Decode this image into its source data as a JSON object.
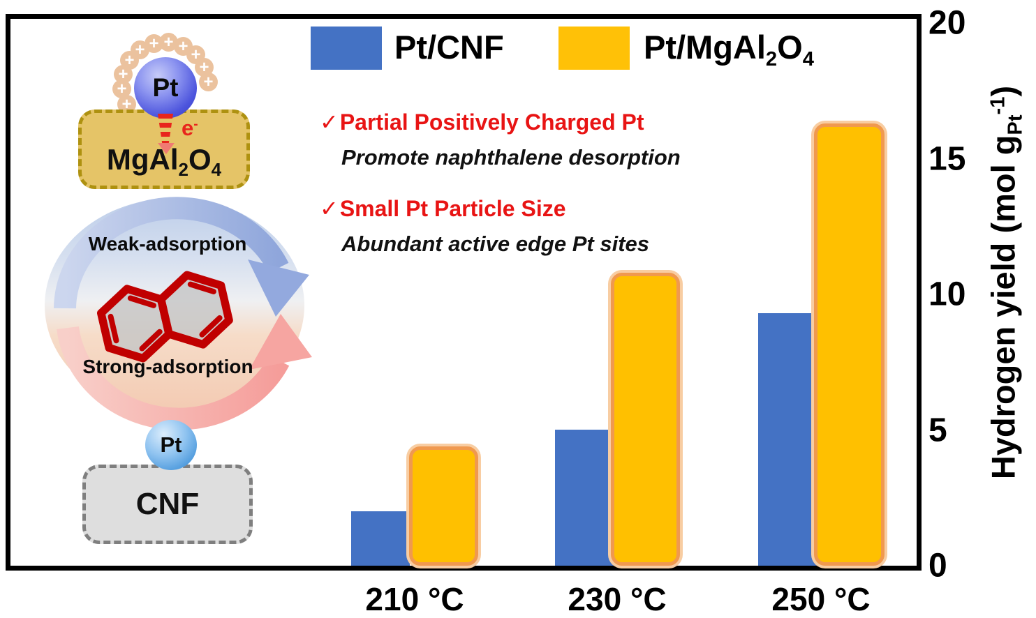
{
  "chart_data": {
    "type": "bar",
    "title": "",
    "categories": [
      "210 °C",
      "230 °C",
      "250 °C"
    ],
    "series": [
      {
        "name": "Pt/CNF",
        "color": "#4472C4",
        "values": [
          2.0,
          5.0,
          9.3
        ]
      },
      {
        "name": "Pt/MgAl2O4",
        "color": "#FFC000",
        "values": [
          4.4,
          10.8,
          16.3
        ]
      }
    ],
    "ylabel": "Hydrogen yield (mol gPt^-1)",
    "ylabel_parts": {
      "pre": "Hydrogen yield (mol g",
      "sub": "Pt",
      "sup": "-1",
      "post": ")"
    },
    "yticks": [
      0,
      5,
      10,
      15,
      20
    ],
    "ylim": [
      0,
      20
    ],
    "grid": false,
    "legend_position": "top-inside"
  },
  "legend": {
    "items": [
      {
        "label": "Pt/CNF",
        "color": "#4472C4"
      },
      {
        "label": "Pt/MgAl2O4",
        "color": "#FFC107",
        "label_parts": {
          "p1": "Pt/MgAl",
          "s1": "2",
          "p2": "O",
          "s2": "4"
        }
      }
    ]
  },
  "annotations": {
    "accent_red": "#E81414",
    "point1": {
      "check": "✓",
      "title": "Partial Positively Charged Pt",
      "desc": "Promote naphthalene desorption"
    },
    "point2": {
      "check": "✓",
      "title": "Small Pt Particle Size",
      "desc": "Abundant active edge Pt sites"
    }
  },
  "diagram": {
    "pt_top": "Pt",
    "plus": "+",
    "electron_parts": {
      "base": "e",
      "sup": "-"
    },
    "mgal_parts": {
      "p1": "MgAl",
      "s1": "2",
      "p2": "O",
      "s2": "4"
    },
    "weak": "Weak-adsorption",
    "strong": "Strong-adsorption",
    "naphthalene_color": "#C00000",
    "pt_bottom": "Pt",
    "cnf": "CNF"
  }
}
